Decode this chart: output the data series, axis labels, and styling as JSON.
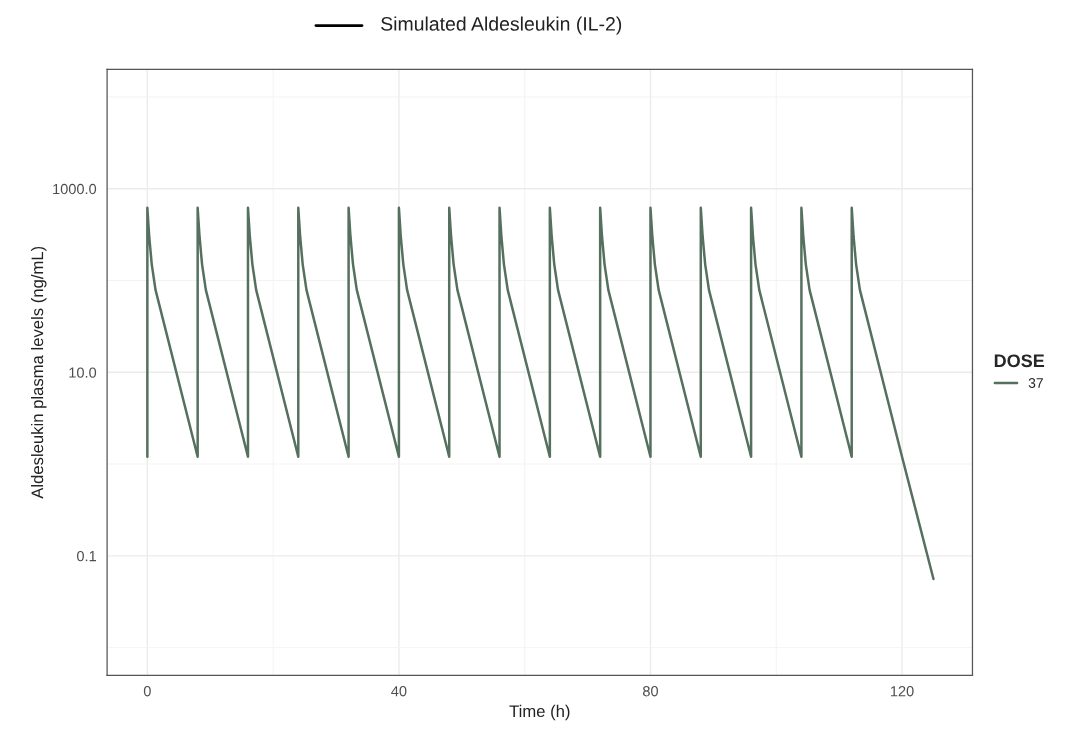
{
  "chart_data": {
    "type": "line",
    "title": "Simulated Aldesleukin (IL-2)",
    "xlabel": "Time (h)",
    "ylabel": "Aldesleukin plasma levels (ng/mL)",
    "legend_title": "DOSE",
    "legend": "right",
    "grid": true,
    "log": "y",
    "xlim": [
      -6.4,
      131.2
    ],
    "xticks": [
      0,
      40,
      80,
      120
    ],
    "ylim": [
      0.005,
      20000
    ],
    "yticks": [
      {
        "value": 0.1,
        "label": "0.1"
      },
      {
        "value": 10,
        "label": "10.0"
      },
      {
        "value": 1000,
        "label": "1000.0"
      }
    ],
    "series": [
      {
        "name": "37",
        "color": "#56705f",
        "x": [
          0,
          0,
          0.3,
          0.7,
          1.3,
          8,
          8,
          8.3,
          8.7,
          9.3,
          16,
          16,
          16.3,
          16.7,
          17.3,
          24,
          24,
          24.3,
          24.7,
          25.3,
          32,
          32,
          32.3,
          32.7,
          33.3,
          40,
          40,
          40.3,
          40.7,
          41.3,
          48,
          48,
          48.3,
          48.7,
          49.3,
          56,
          56,
          56.3,
          56.7,
          57.3,
          64,
          64,
          64.3,
          64.7,
          65.3,
          72,
          72,
          72.3,
          72.7,
          73.3,
          80,
          80,
          80.3,
          80.7,
          81.3,
          88,
          88,
          88.3,
          88.7,
          89.3,
          96,
          96,
          96.3,
          96.7,
          97.3,
          104,
          104,
          104.3,
          104.7,
          105.3,
          112,
          112,
          112.3,
          112.7,
          113.3,
          120,
          125
        ],
        "values": [
          1.2,
          620,
          300,
          150,
          79,
          1.2,
          620,
          300,
          150,
          79,
          1.2,
          620,
          300,
          150,
          79,
          1.2,
          620,
          300,
          150,
          79,
          1.2,
          620,
          300,
          150,
          79,
          1.2,
          620,
          300,
          150,
          79,
          1.2,
          620,
          300,
          150,
          79,
          1.2,
          620,
          300,
          150,
          79,
          1.2,
          620,
          300,
          150,
          79,
          1.2,
          620,
          300,
          150,
          79,
          1.2,
          620,
          300,
          150,
          79,
          1.2,
          620,
          300,
          150,
          79,
          1.2,
          620,
          300,
          150,
          79,
          1.2,
          620,
          300,
          150,
          79,
          1.2,
          620,
          300,
          150,
          79,
          1.2,
          0.056
        ]
      }
    ]
  }
}
